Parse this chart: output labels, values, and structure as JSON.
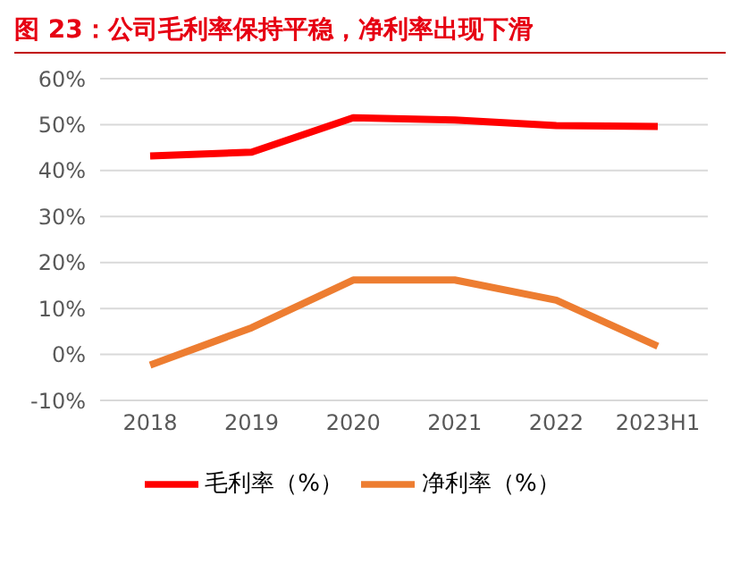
{
  "chart_data": {
    "type": "line",
    "title": "图 23：公司毛利率保持平稳，净利率出现下滑",
    "categories": [
      "2018",
      "2019",
      "2020",
      "2021",
      "2022",
      "2023H1"
    ],
    "series": [
      {
        "name": "毛利率（%）",
        "color": "#ff0000",
        "values": [
          43.2,
          44,
          51.5,
          51,
          49.8,
          49.6
        ]
      },
      {
        "name": "净利率（%）",
        "color": "#ed7d31",
        "values": [
          -2.3,
          5.8,
          16.2,
          16.2,
          11.8,
          1.8
        ]
      }
    ],
    "ylim": [
      -10,
      60
    ],
    "yticks": [
      {
        "value": -10,
        "label": "-10%"
      },
      {
        "value": 0,
        "label": "0%"
      },
      {
        "value": 10,
        "label": "10%"
      },
      {
        "value": 20,
        "label": "20%"
      },
      {
        "value": 30,
        "label": "30%"
      },
      {
        "value": 40,
        "label": "40%"
      },
      {
        "value": 50,
        "label": "50%"
      },
      {
        "value": 60,
        "label": "60%"
      }
    ],
    "grid": "y",
    "legend": "bottom",
    "marker": "none",
    "line_style": "solid"
  }
}
